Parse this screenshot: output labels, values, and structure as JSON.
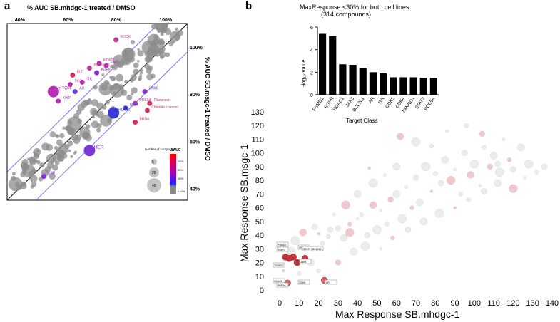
{
  "panels": {
    "a": "a",
    "b": "b"
  },
  "chart_data": [
    {
      "type": "scatter",
      "panel": "a",
      "title": "% AUC SB.mhdgc-1 treated / DMSO",
      "xlabel": "% AUC SB.mhdgc-1 treated / DMSO",
      "ylabel": "% AUC SB.msgc-1 treated / DMSO",
      "x_ticks": [
        "40%",
        "60%",
        "80%",
        "100%"
      ],
      "y_ticks": [
        "100%",
        "80%",
        "60%",
        "40%"
      ],
      "xlim": [
        35,
        110
      ],
      "ylim": [
        35,
        110
      ],
      "legend_size_title": "number of compounds",
      "legend_sizes": [
        5,
        20,
        40
      ],
      "legend_color_title": "ΔAUC",
      "legend_color_ticks": [
        "25%",
        "20%",
        "15%",
        "<10%"
      ],
      "labels": [
        {
          "text": "ROCK",
          "x": 82,
          "y": 104,
          "color": "#c43a9a"
        },
        {
          "text": "MDM2",
          "x": 75,
          "y": 94,
          "color": "#b82fb0"
        },
        {
          "text": "FAK",
          "x": 78,
          "y": 93,
          "color": "#b82fb0"
        },
        {
          "text": "Purmergic",
          "x": 71,
          "y": 92,
          "color": "#c43a9a"
        },
        {
          "text": "AURK",
          "x": 74,
          "y": 90,
          "color": "#8b2fd0"
        },
        {
          "text": "FLT",
          "x": 64,
          "y": 89,
          "color": "#d63060"
        },
        {
          "text": "ITK",
          "x": 68,
          "y": 86,
          "color": "#b82fb0"
        },
        {
          "text": "PKC",
          "x": 63,
          "y": 85,
          "color": "#b82fb0"
        },
        {
          "text": "mTOR",
          "x": 56,
          "y": 82,
          "color": "#b82fb0"
        },
        {
          "text": "AU",
          "x": 65,
          "y": 82,
          "color": "#6a3ad8"
        },
        {
          "text": "XIAP",
          "x": 58,
          "y": 78,
          "color": "#b82fb0"
        },
        {
          "text": "PPAR",
          "x": 94,
          "y": 82,
          "color": "#8b2fd0"
        },
        {
          "text": "PDE5A",
          "x": 90,
          "y": 77,
          "color": "#b82fb0"
        },
        {
          "text": "Flavanoid",
          "x": 96,
          "y": 77,
          "color": "#d63060"
        },
        {
          "text": "Chloride channel",
          "x": 95,
          "y": 74,
          "color": "#d63060"
        },
        {
          "text": "MDR",
          "x": 86,
          "y": 75,
          "color": "#3a3ad8"
        },
        {
          "text": "HDAC",
          "x": 81,
          "y": 73,
          "color": "#3a3ad8"
        },
        {
          "text": "BRD4",
          "x": 90,
          "y": 69,
          "color": "#d63060"
        },
        {
          "text": "HER",
          "x": 71,
          "y": 57,
          "color": "#7a3ad8"
        },
        {
          "text": "KSP",
          "x": 52,
          "y": 46,
          "color": "#8b2fd0"
        }
      ]
    },
    {
      "type": "bar",
      "panel": "b-inset",
      "title": "MaxResponse <30% for both cell lines",
      "subtitle": "(314 compounds)",
      "categories": [
        "PSMD1",
        "EGFR",
        "HDAC1",
        "JAK3",
        "BCL2L1",
        "AR",
        "ITK",
        "CDK5",
        "CDK4",
        "TXNRD1",
        "STAT3",
        "PDE5A"
      ],
      "values": [
        5.4,
        5.2,
        2.7,
        2.65,
        2.4,
        2.0,
        1.9,
        1.55,
        1.55,
        1.55,
        1.5,
        1.5
      ],
      "xlabel": "Target Class",
      "ylabel": "-log₁₀-value",
      "ylim": [
        0,
        6
      ],
      "y_ticks": [
        0,
        2,
        4,
        6
      ]
    },
    {
      "type": "scatter",
      "panel": "b",
      "xlabel": "Max Response SB.mhdgc-1",
      "ylabel": "Max Response SB.msgc-1",
      "xlim": [
        0,
        140
      ],
      "ylim": [
        0,
        130
      ],
      "x_ticks": [
        0,
        10,
        20,
        30,
        40,
        50,
        60,
        70,
        80,
        90,
        100,
        110,
        120,
        130,
        140
      ],
      "y_ticks": [
        0,
        10,
        20,
        30,
        40,
        50,
        60,
        70,
        80,
        90,
        100,
        110,
        120,
        130
      ],
      "annotations": [
        "PSMD1",
        "EGFR",
        "ITK",
        "STAT3",
        "BCL2L1",
        "TXNRD1",
        "HDAC1",
        "CDK5",
        "PDE5A",
        "AR",
        "JAK3"
      ],
      "highlight_points": [
        {
          "x": 3,
          "y": 24
        },
        {
          "x": 5,
          "y": 23
        },
        {
          "x": 7,
          "y": 24
        },
        {
          "x": 9,
          "y": 20
        },
        {
          "x": 13,
          "y": 23
        },
        {
          "x": 23,
          "y": 7
        },
        {
          "x": 4,
          "y": 5
        }
      ],
      "points": [
        {
          "x": 20,
          "y": 41
        },
        {
          "x": 25,
          "y": 39
        },
        {
          "x": 30,
          "y": 45
        },
        {
          "x": 33,
          "y": 38
        },
        {
          "x": 36,
          "y": 42
        },
        {
          "x": 40,
          "y": 52
        },
        {
          "x": 42,
          "y": 55
        },
        {
          "x": 45,
          "y": 40
        },
        {
          "x": 48,
          "y": 62
        },
        {
          "x": 50,
          "y": 44
        },
        {
          "x": 52,
          "y": 58
        },
        {
          "x": 55,
          "y": 48
        },
        {
          "x": 57,
          "y": 66
        },
        {
          "x": 60,
          "y": 70
        },
        {
          "x": 63,
          "y": 52
        },
        {
          "x": 65,
          "y": 75
        },
        {
          "x": 68,
          "y": 60
        },
        {
          "x": 70,
          "y": 82
        },
        {
          "x": 72,
          "y": 64
        },
        {
          "x": 75,
          "y": 90
        },
        {
          "x": 78,
          "y": 72
        },
        {
          "x": 80,
          "y": 85
        },
        {
          "x": 83,
          "y": 78
        },
        {
          "x": 85,
          "y": 95
        },
        {
          "x": 88,
          "y": 80
        },
        {
          "x": 90,
          "y": 88
        },
        {
          "x": 93,
          "y": 70
        },
        {
          "x": 95,
          "y": 100
        },
        {
          "x": 98,
          "y": 84
        },
        {
          "x": 100,
          "y": 92
        },
        {
          "x": 103,
          "y": 76
        },
        {
          "x": 105,
          "y": 104
        },
        {
          "x": 108,
          "y": 90
        },
        {
          "x": 110,
          "y": 98
        },
        {
          "x": 113,
          "y": 86
        },
        {
          "x": 115,
          "y": 110
        },
        {
          "x": 118,
          "y": 95
        },
        {
          "x": 120,
          "y": 88
        },
        {
          "x": 124,
          "y": 104
        },
        {
          "x": 128,
          "y": 92
        },
        {
          "x": 46,
          "y": 89
        },
        {
          "x": 78,
          "y": 105
        },
        {
          "x": 112,
          "y": 92
        },
        {
          "x": 60,
          "y": 90
        },
        {
          "x": 34,
          "y": 62
        },
        {
          "x": 28,
          "y": 55
        },
        {
          "x": 22,
          "y": 34
        },
        {
          "x": 18,
          "y": 46
        },
        {
          "x": 12,
          "y": 42
        },
        {
          "x": 8,
          "y": 36
        },
        {
          "x": 15,
          "y": 30
        },
        {
          "x": 10,
          "y": 12
        },
        {
          "x": 30,
          "y": 20
        },
        {
          "x": 38,
          "y": 28
        },
        {
          "x": 44,
          "y": 32
        },
        {
          "x": 52,
          "y": 30
        },
        {
          "x": 58,
          "y": 38
        },
        {
          "x": 66,
          "y": 44
        },
        {
          "x": 74,
          "y": 50
        },
        {
          "x": 82,
          "y": 56
        },
        {
          "x": 90,
          "y": 60
        },
        {
          "x": 97,
          "y": 66
        },
        {
          "x": 105,
          "y": 72
        },
        {
          "x": 112,
          "y": 78
        },
        {
          "x": 120,
          "y": 74
        },
        {
          "x": 126,
          "y": 82
        },
        {
          "x": 132,
          "y": 86
        },
        {
          "x": 136,
          "y": 90
        },
        {
          "x": 62,
          "y": 112
        },
        {
          "x": 70,
          "y": 108
        },
        {
          "x": 86,
          "y": 116
        },
        {
          "x": 96,
          "y": 120
        },
        {
          "x": 104,
          "y": 114
        },
        {
          "x": 40,
          "y": 70
        },
        {
          "x": 48,
          "y": 78
        },
        {
          "x": 54,
          "y": 84
        },
        {
          "x": 36,
          "y": 48
        },
        {
          "x": 26,
          "y": 44
        },
        {
          "x": 16,
          "y": 20
        },
        {
          "x": 6,
          "y": 28
        },
        {
          "x": 2,
          "y": 14
        },
        {
          "x": 20,
          "y": 14
        }
      ]
    }
  ]
}
